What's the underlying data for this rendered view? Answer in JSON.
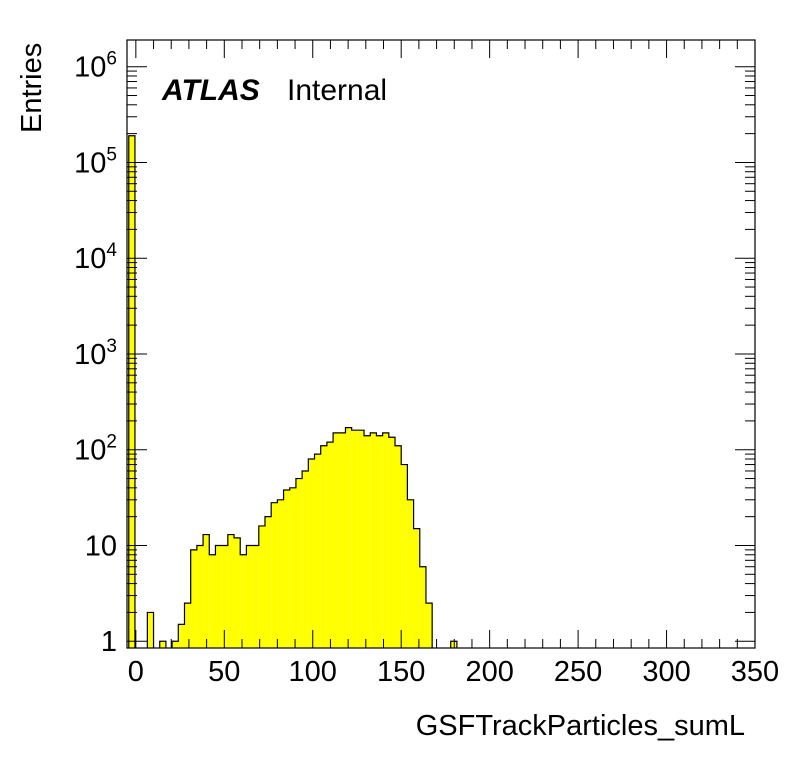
{
  "chart_data": {
    "type": "bar",
    "style": "histogram-step",
    "title": "",
    "xlabel": "GSFTrackParticles_sumL",
    "ylabel": "Entries",
    "ylog": true,
    "xlim": [
      -5,
      350
    ],
    "ylim": [
      0.85,
      1900000
    ],
    "fill_color": "#ffff00",
    "line_color": "#000000",
    "bin_width": 3.5,
    "xticks": [
      "0",
      "50",
      "100",
      "150",
      "200",
      "250",
      "300",
      "350"
    ],
    "xtick_values": [
      0,
      50,
      100,
      150,
      200,
      250,
      300,
      350
    ],
    "ytick_values": [
      1,
      10,
      100,
      1000,
      10000,
      100000,
      1000000
    ],
    "ytick_labels": [
      {
        "base": "1",
        "exp": ""
      },
      {
        "base": "10",
        "exp": ""
      },
      {
        "base": "10",
        "exp": "2"
      },
      {
        "base": "10",
        "exp": "3"
      },
      {
        "base": "10",
        "exp": "4"
      },
      {
        "base": "10",
        "exp": "5"
      },
      {
        "base": "10",
        "exp": "6"
      }
    ],
    "bin_edges": [
      -4,
      -0.5,
      3,
      6.5,
      10,
      13.5,
      17,
      20.5,
      24,
      27.5,
      31,
      34.5,
      38,
      41.5,
      45,
      48.5,
      52,
      55.5,
      59,
      62.5,
      66,
      69.5,
      73,
      76.5,
      80,
      83.5,
      87,
      90.5,
      94,
      97.5,
      101,
      104.5,
      108,
      111.5,
      115,
      118.5,
      122,
      125.5,
      129,
      132.5,
      136,
      139.5,
      143,
      146.5,
      150,
      153.5,
      157,
      160.5,
      164,
      167.5,
      171,
      174.5,
      178,
      181.5
    ],
    "values": [
      190000,
      0,
      0,
      2,
      0,
      1,
      0,
      1,
      1.5,
      2.5,
      9,
      10,
      13,
      8,
      10,
      10,
      13,
      12,
      8,
      10,
      10,
      16,
      20,
      28,
      30,
      38,
      40,
      50,
      60,
      80,
      90,
      110,
      120,
      150,
      150,
      170,
      160,
      160,
      140,
      150,
      140,
      150,
      135,
      110,
      70,
      30,
      15,
      6,
      2.5,
      0,
      0,
      0,
      1,
      0
    ]
  },
  "legend": {
    "experiment": "ATLAS",
    "status": "Internal"
  }
}
